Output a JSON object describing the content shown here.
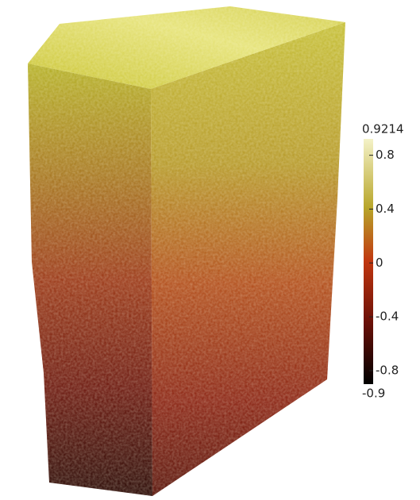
{
  "colorbar": {
    "range": [
      -0.9,
      0.9214
    ],
    "ticks": [
      0.8,
      0.4,
      0,
      -0.4,
      -0.8
    ]
  }
}
